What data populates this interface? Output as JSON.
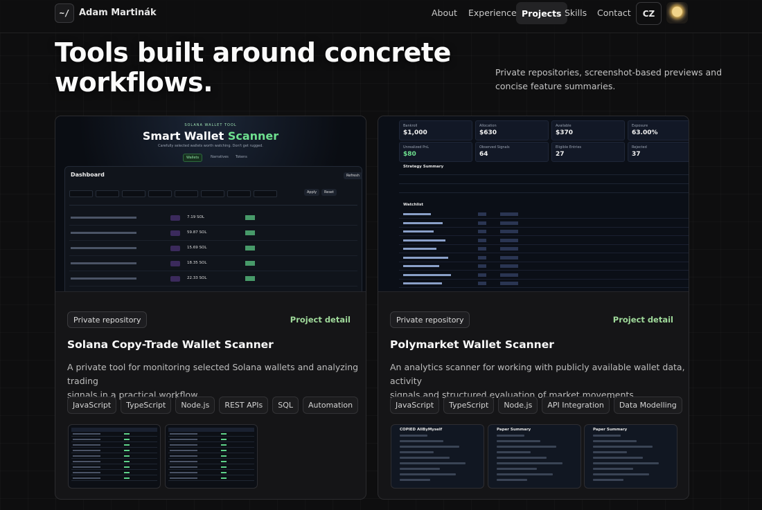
{
  "nav": {
    "logo": "~/",
    "name": "Adam Martinák",
    "links": [
      "About",
      "Experience",
      "Projects",
      "Skills",
      "Contact"
    ],
    "language": "CZ"
  },
  "hero": {
    "title_lines": [
      "Tools built around concrete",
      "workflows."
    ],
    "subtitle_lines": [
      "Private repositories, screenshot-based previews and",
      "concise feature summaries."
    ]
  },
  "projects": [
    {
      "badge": "Private repository",
      "link": "Project detail",
      "title": "Solana Copy-Trade Wallet Scanner",
      "description_lines": [
        "A private tool for monitoring selected Solana wallets and analyzing trading",
        "signals in a practical workflow."
      ],
      "tags": [
        "JavaScript",
        "TypeScript",
        "Node.js",
        "REST APIs",
        "SQL",
        "Automation"
      ],
      "preview": {
        "kicker": "SOLANA WALLET TOOL",
        "heading": "Smart Wallet ",
        "heading_accent": "Scanner",
        "tagline": "Carefully selected wallets worth watching. Don't get rugged.",
        "tabs": [
          "Wallets",
          "Narratives",
          "Tokens"
        ],
        "panel": "Dashboard",
        "buttons": [
          "Apply",
          "Reset",
          "Refresh"
        ],
        "balances": [
          "7.19 SOL",
          "59.87 SOL",
          "15.69 SOL",
          "18.35 SOL",
          "22.33 SOL"
        ]
      },
      "thumbnails": 2
    },
    {
      "badge": "Private repository",
      "link": "Project detail",
      "title": "Polymarket Wallet Scanner",
      "description_lines": [
        "An analytics scanner for working with publicly available wallet data, activity",
        "signals and structured evaluation of market movements."
      ],
      "tags": [
        "JavaScript",
        "TypeScript",
        "Node.js",
        "API Integration",
        "Data Modelling"
      ],
      "preview": {
        "stats": [
          [
            "Bankroll",
            "$1,000"
          ],
          [
            "Allocation",
            "$630"
          ],
          [
            "Available",
            "$370"
          ],
          [
            "Exposure",
            "63.00%"
          ],
          [
            "Unrealized PnL",
            "$80"
          ],
          [
            "Observed Signals",
            "64"
          ],
          [
            "Eligible Entries",
            "27"
          ],
          [
            "Rejected",
            "37"
          ]
        ],
        "sections": [
          "Strategy Summary",
          "Watchlist"
        ]
      },
      "thumbnail_texts": [
        "COPIED AllByMyself",
        "Paper Summary",
        "Paper Summary"
      ]
    }
  ]
}
